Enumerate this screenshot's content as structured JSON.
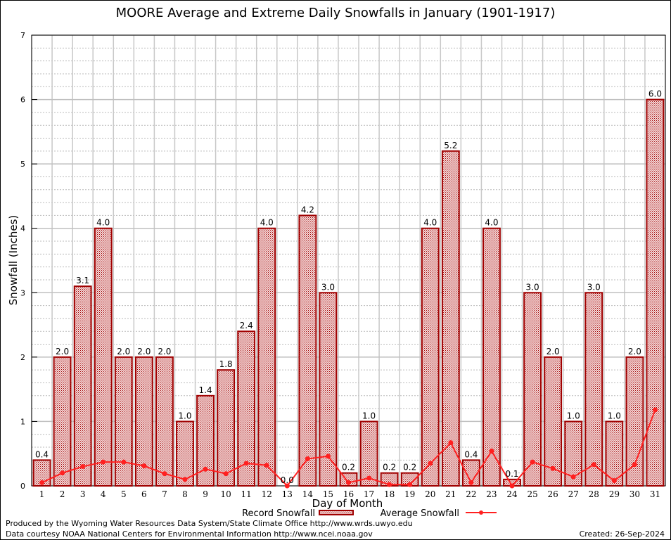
{
  "chart_data": {
    "type": "bar",
    "title": "MOORE Average and Extreme Daily Snowfalls in January (1901-1917)",
    "xlabel": "Day of Month",
    "ylabel": "Snowfall (Inches)",
    "ylim": [
      0,
      7
    ],
    "yticks": [
      0,
      1,
      2,
      3,
      4,
      5,
      6,
      7
    ],
    "grid": true,
    "legend_position": "bottom",
    "categories": [
      "1",
      "2",
      "3",
      "4",
      "5",
      "6",
      "7",
      "8",
      "9",
      "10",
      "11",
      "12",
      "13",
      "14",
      "15",
      "16",
      "17",
      "18",
      "19",
      "20",
      "21",
      "22",
      "23",
      "24",
      "25",
      "26",
      "27",
      "28",
      "29",
      "30",
      "31"
    ],
    "series": [
      {
        "name": "Record Snowfall",
        "type": "bar",
        "color": "#a00000",
        "values": [
          0.4,
          2.0,
          3.1,
          4.0,
          2.0,
          2.0,
          2.0,
          1.0,
          1.4,
          1.8,
          2.4,
          4.0,
          0.0,
          4.2,
          3.0,
          0.2,
          1.0,
          0.2,
          0.2,
          4.0,
          5.2,
          0.4,
          4.0,
          0.1,
          3.0,
          2.0,
          1.0,
          3.0,
          1.0,
          2.0,
          6.0
        ]
      },
      {
        "name": "Average Snowfall",
        "type": "line",
        "color": "#ff2020",
        "values": [
          0.05,
          0.2,
          0.3,
          0.37,
          0.37,
          0.31,
          0.19,
          0.1,
          0.26,
          0.19,
          0.35,
          0.32,
          0.0,
          0.42,
          0.46,
          0.05,
          0.12,
          0.02,
          0.02,
          0.35,
          0.67,
          0.05,
          0.54,
          0.0,
          0.37,
          0.27,
          0.14,
          0.33,
          0.08,
          0.33,
          1.18
        ]
      }
    ]
  },
  "footer": {
    "producer": "Produced by the Wyoming Water Resources Data System/State Climate Office http://www.wrds.uwyo.edu",
    "courtesy": "Data courtesy NOAA National Centers for Environmental Information http://www.ncei.noaa.gov",
    "created": "Created:  26-Sep-2024"
  }
}
